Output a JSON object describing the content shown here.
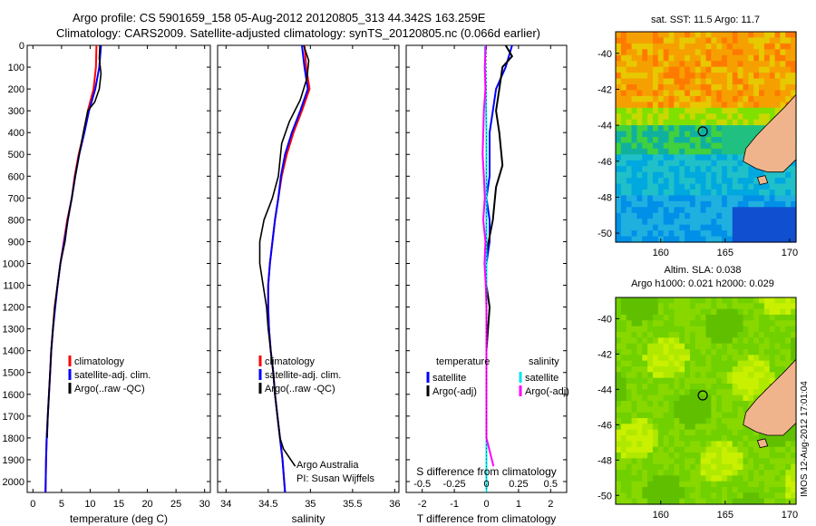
{
  "header": {
    "title_line1": "Argo profile: CS 5901659_158 05-Aug-2012 20120805_313 44.342S 163.259E",
    "title_line2": "Climatology: CARS2009. Satellite-adjusted climatology: synTS_20120805.nc (0.066d earlier)"
  },
  "stamp": "IMOS 12-Aug-2012 17:01:04",
  "colors": {
    "climatology": "#ff0000",
    "satellite": "#0000ff",
    "argo": "#000000",
    "salinity_satellite": "#00e5ee",
    "salinity_argo": "#ff00ff",
    "land": "#f0b48c"
  },
  "chart_data": [
    {
      "id": "temperature",
      "type": "line",
      "xlabel": "temperature (deg C)",
      "ylabel": "",
      "xlim": [
        -1,
        31
      ],
      "ylim": [
        2050,
        0
      ],
      "xticks": [
        0,
        5,
        10,
        15,
        20,
        25,
        30
      ],
      "yticks": [
        0,
        100,
        200,
        300,
        400,
        500,
        600,
        700,
        800,
        900,
        1000,
        1100,
        1200,
        1300,
        1400,
        1500,
        1600,
        1700,
        1800,
        1900,
        2000
      ],
      "legend": {
        "position": "lower-right",
        "entries": [
          "climatology",
          "satellite-adj. clim.",
          "Argo(..raw -QC)"
        ]
      },
      "series": [
        {
          "name": "climatology",
          "color": "#ff0000",
          "x": [
            11.1,
            11.0,
            10.6,
            9.6,
            8.9,
            8.0,
            7.3,
            6.8,
            6.0,
            5.4,
            4.8,
            4.3,
            3.8,
            3.5,
            3.2,
            3.0,
            2.8,
            2.6,
            2.4,
            2.3,
            2.2
          ],
          "y": [
            0,
            100,
            200,
            300,
            400,
            500,
            600,
            700,
            800,
            900,
            1000,
            1100,
            1200,
            1300,
            1400,
            1500,
            1600,
            1700,
            1800,
            1900,
            2050
          ]
        },
        {
          "name": "satellite-adj. clim.",
          "color": "#0000ff",
          "x": [
            11.9,
            11.6,
            10.9,
            9.8,
            9.0,
            8.1,
            7.4,
            6.8,
            6.1,
            5.5,
            4.8,
            4.3,
            3.9,
            3.5,
            3.2,
            3.0,
            2.8,
            2.6,
            2.4,
            2.3,
            2.2
          ],
          "y": [
            0,
            100,
            200,
            300,
            400,
            500,
            600,
            700,
            800,
            900,
            1000,
            1100,
            1200,
            1300,
            1400,
            1500,
            1600,
            1700,
            1800,
            1900,
            2050
          ]
        },
        {
          "name": "Argo(..raw -QC)",
          "color": "#000000",
          "x": [
            11.7,
            11.6,
            11.9,
            11.6,
            10.8,
            9.6,
            8.8,
            8.1,
            7.4,
            6.8,
            6.1,
            5.6,
            4.8,
            4.3,
            3.8,
            3.5,
            3.2,
            3.0,
            2.8,
            2.6,
            2.5
          ],
          "y": [
            0,
            60,
            130,
            200,
            260,
            300,
            400,
            500,
            600,
            700,
            800,
            900,
            1000,
            1100,
            1200,
            1300,
            1400,
            1500,
            1600,
            1700,
            1800
          ]
        }
      ]
    },
    {
      "id": "salinity",
      "type": "line",
      "xlabel": "salinity",
      "ylabel": "",
      "xlim": [
        33.9,
        36.05
      ],
      "ylim": [
        2050,
        0
      ],
      "xticks": [
        34,
        34.5,
        35,
        35.5,
        36
      ],
      "legend": {
        "position": "lower-right",
        "entries": [
          "climatology",
          "satellite-adj. clim.",
          "Argo(..raw -QC)"
        ]
      },
      "annotations": [
        "Argo Australia",
        "PI: Susan Wijffels"
      ],
      "series": [
        {
          "name": "climatology",
          "color": "#ff0000",
          "x": [
            34.93,
            34.95,
            34.99,
            34.9,
            34.8,
            34.72,
            34.66,
            34.62,
            34.58,
            34.55,
            34.52,
            34.5,
            34.5,
            34.51,
            34.53,
            34.56,
            34.58,
            34.61,
            34.64,
            34.67,
            34.7
          ],
          "y": [
            0,
            100,
            200,
            300,
            400,
            500,
            600,
            700,
            800,
            900,
            1000,
            1100,
            1200,
            1300,
            1400,
            1500,
            1600,
            1700,
            1800,
            1900,
            2050
          ]
        },
        {
          "name": "satellite-adj. clim.",
          "color": "#0000ff",
          "x": [
            34.9,
            34.93,
            34.97,
            34.88,
            34.78,
            34.7,
            34.65,
            34.62,
            34.58,
            34.55,
            34.52,
            34.5,
            34.5,
            34.51,
            34.53,
            34.56,
            34.58,
            34.61,
            34.64,
            34.67,
            34.7
          ],
          "y": [
            0,
            100,
            200,
            300,
            400,
            500,
            600,
            700,
            800,
            900,
            1000,
            1100,
            1200,
            1300,
            1400,
            1500,
            1600,
            1700,
            1800,
            1900,
            2050
          ]
        },
        {
          "name": "Argo(..raw -QC)",
          "color": "#000000",
          "x": [
            34.92,
            34.98,
            34.96,
            34.88,
            34.75,
            34.66,
            34.62,
            34.55,
            34.45,
            34.4,
            34.4,
            34.44,
            34.48,
            34.5,
            34.53,
            34.56,
            34.58,
            34.61,
            34.64,
            34.68,
            34.82
          ],
          "y": [
            0,
            70,
            150,
            250,
            350,
            450,
            600,
            700,
            800,
            900,
            1000,
            1100,
            1200,
            1300,
            1400,
            1500,
            1600,
            1700,
            1800,
            1850,
            1930
          ]
        }
      ]
    },
    {
      "id": "differences",
      "type": "line",
      "xlabel": "T difference from climatology",
      "x2label": "S difference from climatology",
      "ylabel": "",
      "xlim": [
        -2.5,
        2.5
      ],
      "ylim": [
        2050,
        0
      ],
      "xticks": [
        -2,
        -1,
        0,
        1,
        2
      ],
      "x2ticks": [
        -0.5,
        -0.25,
        0,
        0.25,
        0.5
      ],
      "x2ticklabels": [
        "-0.5",
        "-0.25",
        "0",
        "0.25",
        "0.5"
      ],
      "legend": {
        "position": "lower-center",
        "entries": [
          "temperature",
          "salinity",
          "satellite",
          "Argo(-adj)",
          "satellite",
          "Argo(-adj)"
        ]
      },
      "series": [
        {
          "name": "T satellite",
          "color": "#0000ff",
          "x": [
            0.8,
            0.6,
            0.3,
            0.2,
            0.1,
            0.1,
            0.1,
            0.0,
            0.1,
            0.1,
            0.0,
            0.0,
            0.0,
            0.0,
            0.0,
            0.0,
            0.0
          ],
          "y": [
            0,
            100,
            200,
            300,
            400,
            500,
            600,
            700,
            800,
            900,
            1000,
            1200,
            1400,
            1600,
            1800,
            1900,
            2050
          ]
        },
        {
          "name": "T Argo(-adj)",
          "color": "#000000",
          "x": [
            0.6,
            0.8,
            0.5,
            0.4,
            0.3,
            0.4,
            0.5,
            0.3,
            0.2,
            0.0,
            0.0,
            0.1,
            0.0,
            0.0,
            0.0,
            0.0
          ],
          "y": [
            0,
            50,
            100,
            200,
            300,
            400,
            550,
            650,
            800,
            950,
            1100,
            1200,
            1400,
            1600,
            1800,
            1900
          ]
        },
        {
          "name": "S satellite",
          "color": "#00e5ee",
          "x": [
            -0.05,
            -0.03,
            -0.02,
            -0.01,
            0.0,
            0.0,
            0.0,
            0.0,
            0.0,
            0.0,
            0.0,
            0.0,
            0.0
          ],
          "y": [
            0,
            100,
            200,
            300,
            400,
            600,
            800,
            1000,
            1200,
            1400,
            1600,
            1800,
            2050
          ]
        },
        {
          "name": "S Argo(-adj)",
          "color": "#ff00ff",
          "x": [
            -0.02,
            -0.05,
            -0.03,
            -0.08,
            -0.1,
            -0.12,
            -0.08,
            -0.05,
            -0.1,
            -0.03,
            -0.06,
            -0.02,
            0.0,
            0.0,
            0.0,
            0.22
          ],
          "y": [
            0,
            100,
            200,
            300,
            400,
            500,
            600,
            700,
            800,
            900,
            1000,
            1100,
            1200,
            1400,
            1800,
            1930
          ]
        }
      ]
    },
    {
      "id": "sst-map",
      "type": "heatmap",
      "title": "sat. SST: 11.5 Argo: 11.7",
      "xlim": [
        156.5,
        170.5
      ],
      "ylim": [
        -50.5,
        -38.8
      ],
      "xticks": [
        160,
        165,
        170
      ],
      "yticks": [
        -40,
        -42,
        -44,
        -46,
        -48,
        -50
      ],
      "marker": {
        "lon": 163.259,
        "lat": -44.342
      }
    },
    {
      "id": "sla-map",
      "type": "heatmap",
      "title": "Altim. SLA: 0.038",
      "subtitle": "Argo h1000: 0.021 h2000: 0.029",
      "xlim": [
        156.5,
        170.5
      ],
      "ylim": [
        -50.5,
        -38.8
      ],
      "xticks": [
        160,
        165,
        170
      ],
      "yticks": [
        -40,
        -42,
        -44,
        -46,
        -48,
        -50
      ],
      "marker": {
        "lon": 163.259,
        "lat": -44.342
      }
    }
  ]
}
